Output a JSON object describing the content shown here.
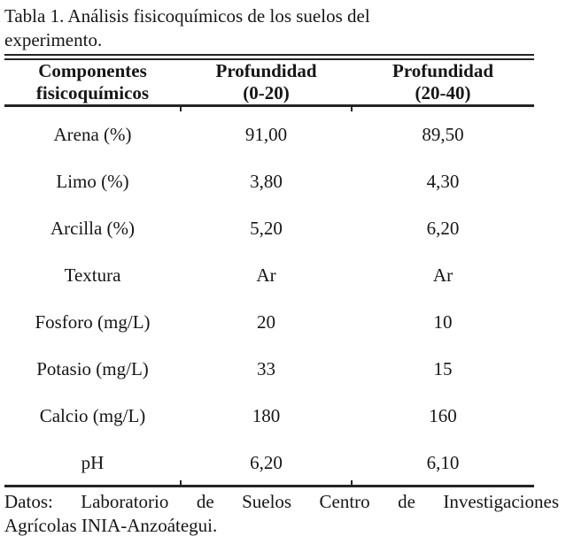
{
  "title": {
    "line1": "Tabla 1. Análisis fisicoquímicos de los suelos del",
    "line2": "experimento.",
    "full": "Tabla 1. Análisis fisicoquímicos de los suelos del experimento."
  },
  "table": {
    "columns": [
      {
        "line1": "Componentes",
        "line2": "fisicoquímicos"
      },
      {
        "line1": "Profundidad",
        "line2": "(0-20)"
      },
      {
        "line1": "Profundidad",
        "line2": "(20-40)"
      }
    ],
    "rows": [
      {
        "component": "Arena (%)",
        "depth_0_20": "91,00",
        "depth_20_40": "89,50"
      },
      {
        "component": "Limo (%)",
        "depth_0_20": "3,80",
        "depth_20_40": "4,30"
      },
      {
        "component": "Arcilla (%)",
        "depth_0_20": "5,20",
        "depth_20_40": "6,20"
      },
      {
        "component": "Textura",
        "depth_0_20": "Ar",
        "depth_20_40": "Ar"
      },
      {
        "component": "Fosforo (mg/L)",
        "depth_0_20": "20",
        "depth_20_40": "10"
      },
      {
        "component": "Potasio (mg/L)",
        "depth_0_20": "33",
        "depth_20_40": "15"
      },
      {
        "component": "Calcio (mg/L)",
        "depth_0_20": "180",
        "depth_20_40": "160"
      },
      {
        "component": "pH",
        "depth_0_20": "6,20",
        "depth_20_40": "6,10"
      }
    ]
  },
  "footer": {
    "line1": "Datos: Laboratorio de Suelos Centro de Investigaciones",
    "line2": "Agrícolas INIA-Anzoátegui."
  },
  "colors": {
    "text": "#161616",
    "rule": "#242424",
    "background": "#ffffff"
  }
}
